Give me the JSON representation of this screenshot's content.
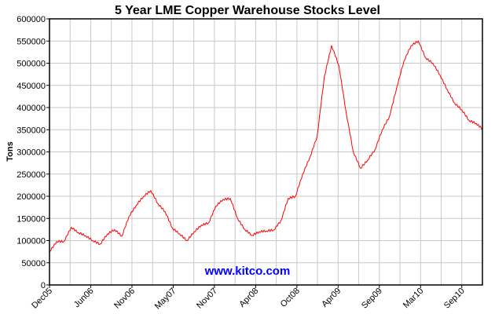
{
  "chart_data": {
    "type": "line",
    "title": "5 Year LME Copper Warehouse Stocks Level",
    "xlabel": "",
    "ylabel": "Tons",
    "watermark": "www.kitco.com",
    "ylim": [
      0,
      600000
    ],
    "yticks": [
      "0",
      "50000",
      "100000",
      "150000",
      "200000",
      "250000",
      "300000",
      "350000",
      "400000",
      "450000",
      "500000",
      "550000",
      "600000"
    ],
    "xticks": [
      "Dec05",
      "Jun06",
      "Nov06",
      "May07",
      "Nov07",
      "Apr08",
      "Oct08",
      "Apr09",
      "Sep09",
      "Mar10",
      "Sep10"
    ],
    "grid": true,
    "line_color": "#ff0000",
    "watermark_color": "#0000ff",
    "series": [
      {
        "x": [
          "2005-12",
          "2006-01",
          "2006-02",
          "2006-03",
          "2006-04",
          "2006-05",
          "2006-06",
          "2006-07",
          "2006-08",
          "2006-09",
          "2006-10",
          "2006-11",
          "2006-12",
          "2007-01",
          "2007-02",
          "2007-03",
          "2007-04",
          "2007-05",
          "2007-06",
          "2007-07",
          "2007-08",
          "2007-09",
          "2007-10",
          "2007-11",
          "2007-12",
          "2008-01",
          "2008-02",
          "2008-03",
          "2008-04",
          "2008-05",
          "2008-06",
          "2008-07",
          "2008-08",
          "2008-09",
          "2008-10",
          "2008-11",
          "2008-12",
          "2009-01",
          "2009-02",
          "2009-03",
          "2009-04",
          "2009-05",
          "2009-06",
          "2009-07",
          "2009-08",
          "2009-09",
          "2009-10",
          "2009-11",
          "2009-12",
          "2010-01",
          "2010-02",
          "2010-03",
          "2010-04",
          "2010-05",
          "2010-06",
          "2010-07",
          "2010-08",
          "2010-09",
          "2010-10",
          "2010-11",
          "2010-12"
        ],
        "values": [
          75000,
          98000,
          98000,
          130000,
          118000,
          111000,
          100000,
          92000,
          115000,
          125000,
          110000,
          155000,
          180000,
          200000,
          213000,
          183000,
          165000,
          128000,
          115000,
          100000,
          120000,
          135000,
          140000,
          178000,
          193000,
          195000,
          150000,
          125000,
          112000,
          120000,
          122000,
          124000,
          145000,
          195000,
          200000,
          250000,
          288000,
          335000,
          470000,
          540000,
          495000,
          390000,
          300000,
          263000,
          282000,
          305000,
          350000,
          380000,
          445000,
          505000,
          540000,
          550000,
          512000,
          500000,
          473000,
          440000,
          410000,
          395000,
          371000,
          364000,
          352000
        ]
      }
    ]
  }
}
